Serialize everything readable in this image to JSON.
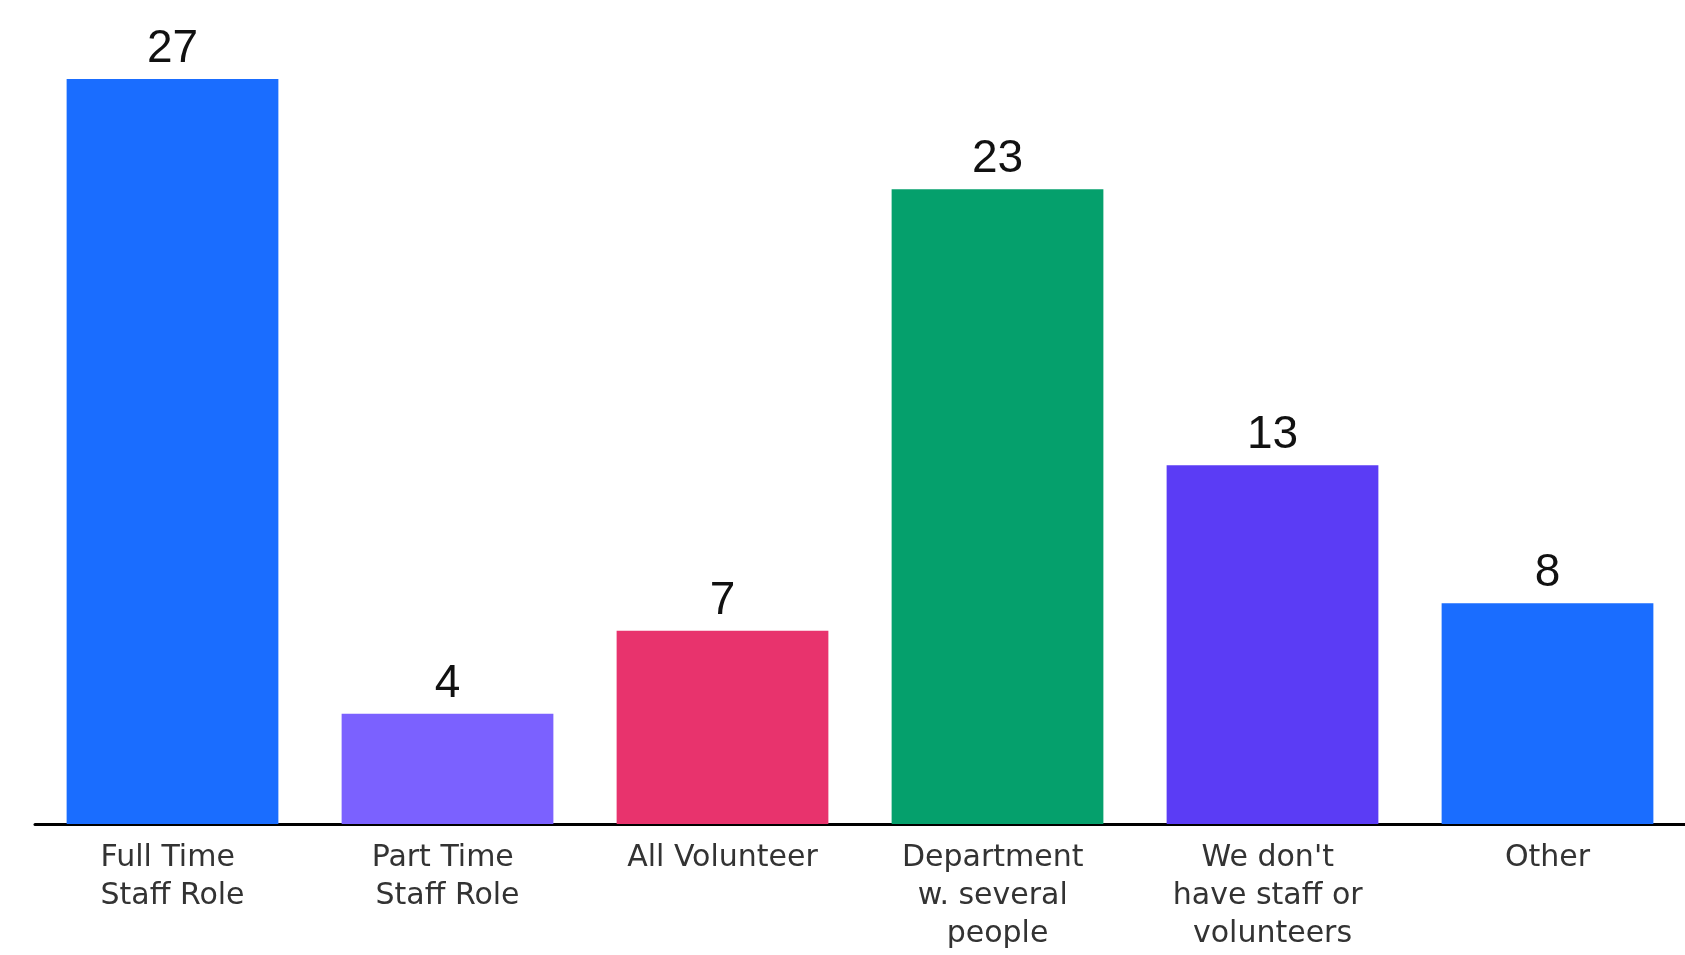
{
  "chart_data": {
    "type": "bar",
    "categories": [
      "Full Time Staff Role",
      "Part Time Staff Role",
      "All Volunteer",
      "Department w. several people",
      "We don't have staff or volunteers",
      "Other"
    ],
    "values": [
      27,
      4,
      7,
      23,
      13,
      8
    ],
    "colors": [
      "#1a6dff",
      "#7b61ff",
      "#e8336d",
      "#05a06c",
      "#5b3cf5",
      "#1a6dff"
    ],
    "data_labels": true
  }
}
